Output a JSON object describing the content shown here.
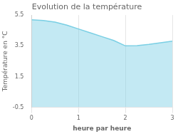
{
  "chart_data": {
    "type": "line",
    "title": "Evolution de la température",
    "xlabel": "heure par heure",
    "ylabel": "Température en °C",
    "x": [
      0,
      0.25,
      0.5,
      0.75,
      1.0,
      1.25,
      1.5,
      1.75,
      2.0,
      2.25,
      2.5,
      2.75,
      3.0
    ],
    "values": [
      5.2,
      5.15,
      5.05,
      4.85,
      4.6,
      4.35,
      4.1,
      3.85,
      3.5,
      3.52,
      3.6,
      3.7,
      3.8
    ],
    "color": "#7acfe4",
    "xlim": [
      0,
      3.0
    ],
    "ylim": [
      -0.5,
      5.5
    ],
    "xticks": [
      0,
      1,
      2,
      3
    ],
    "yticks": [
      -0.5,
      1.5,
      3.5,
      5.5
    ],
    "grid": "x"
  }
}
